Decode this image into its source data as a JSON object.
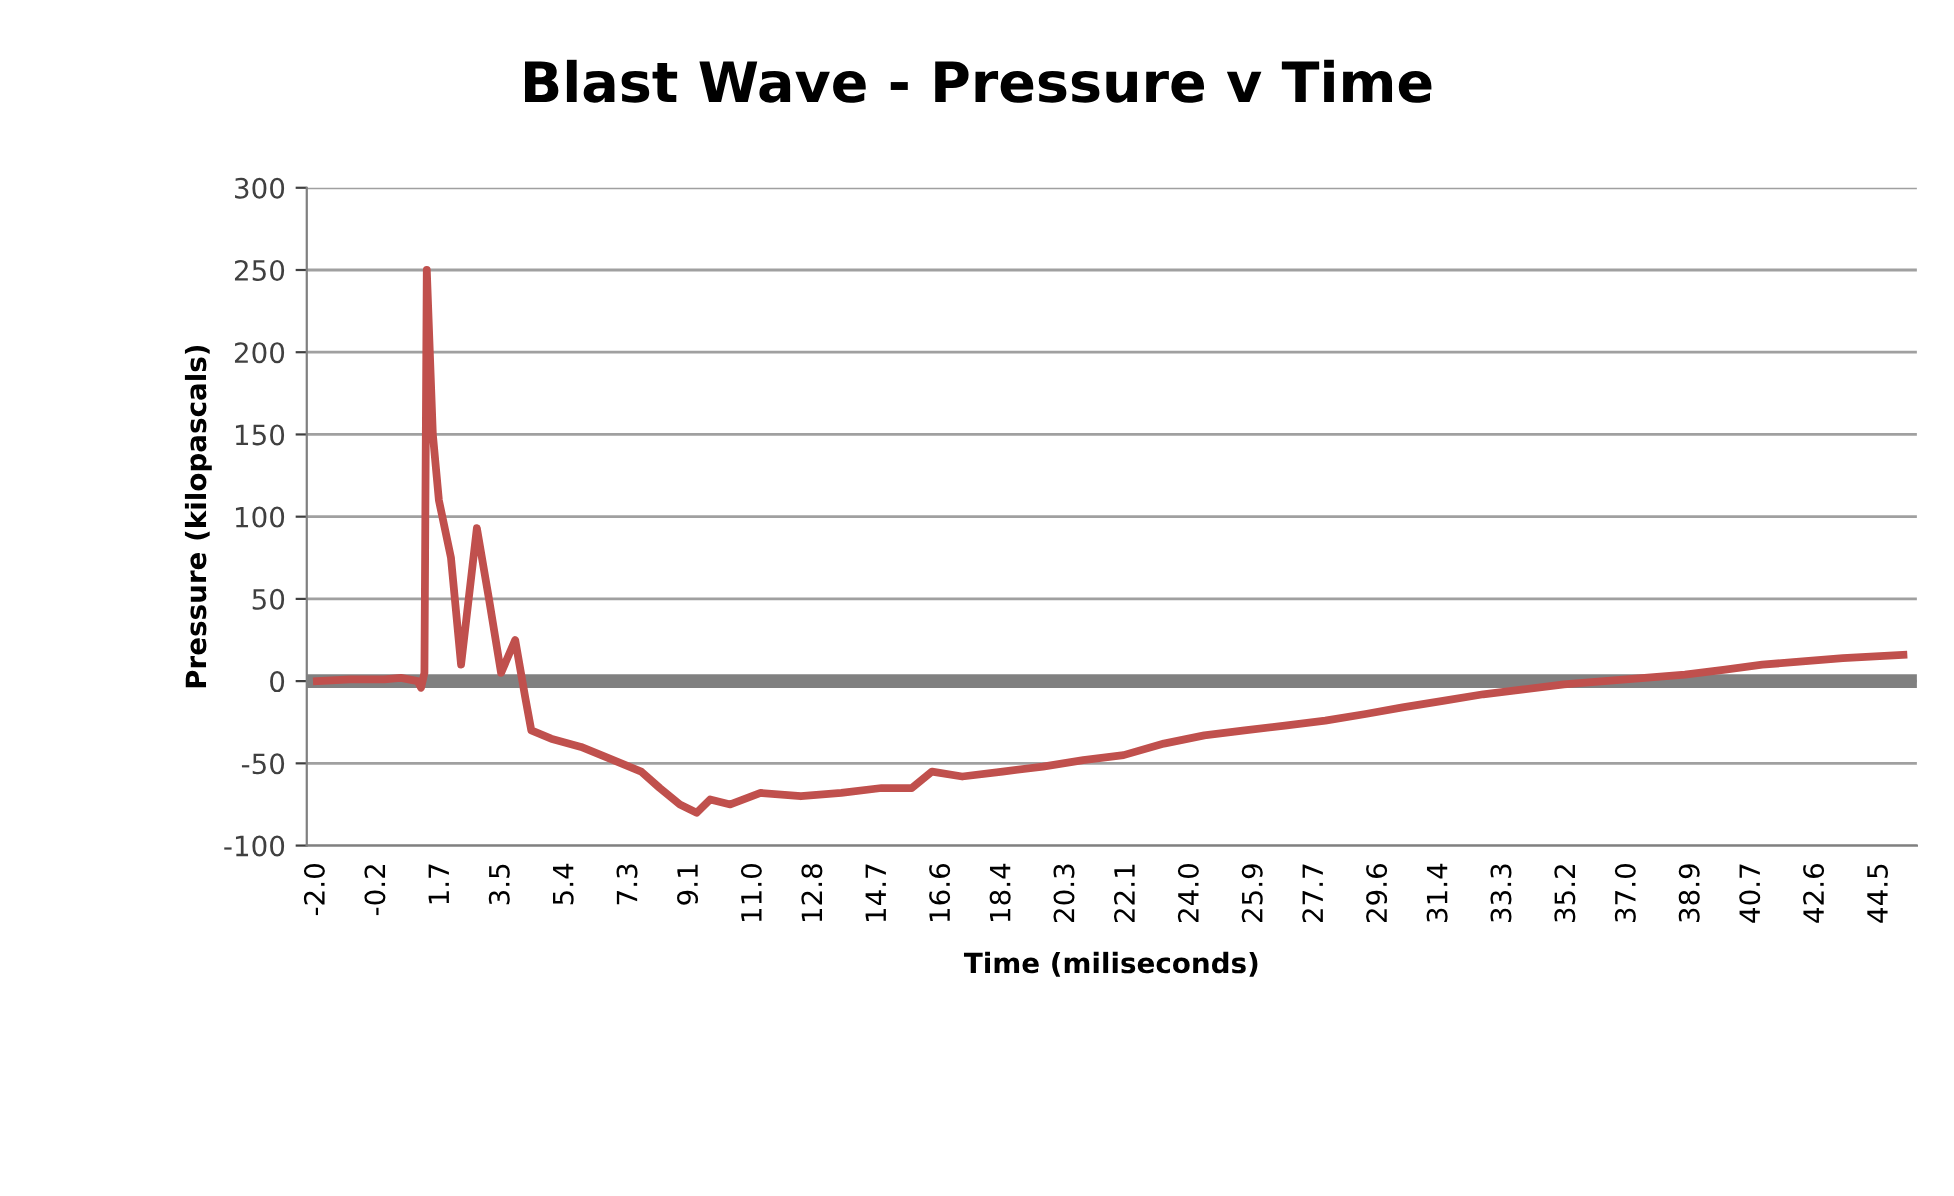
{
  "chart_data": {
    "type": "line",
    "title": "Blast Wave - Pressure v Time",
    "xlabel": "Time (miliseconds)",
    "ylabel": "Pressure (kilopascals)",
    "series": [
      {
        "color": "#c0504d",
        "x": [
          -2.0,
          -1.0,
          0.0,
          0.5,
          1.0,
          1.1,
          1.2,
          1.27,
          1.45,
          1.63,
          1.99,
          2.29,
          2.76,
          3.12,
          3.48,
          3.9,
          4.2,
          4.38,
          4.97,
          5.86,
          6.46,
          7.65,
          8.2,
          8.8,
          9.3,
          9.7,
          10.3,
          11.2,
          12.4,
          13.6,
          14.8,
          15.7,
          16.3,
          17.2,
          18.4,
          19.6,
          20.8,
          22.0,
          23.2,
          24.4,
          25.6,
          26.8,
          28.0,
          29.2,
          30.3,
          31.5,
          32.7,
          33.9,
          35.1,
          36.3,
          37.5,
          38.7,
          39.9,
          41.0,
          42.2,
          43.4,
          45.2
        ],
        "values": [
          0,
          1,
          1,
          2,
          0,
          -4,
          5,
          250,
          150,
          110,
          75,
          10,
          93,
          50,
          5,
          25,
          -10,
          -30,
          -35,
          -40,
          -45,
          -55,
          -65,
          -75,
          -80,
          -72,
          -75,
          -68,
          -70,
          -68,
          -65,
          -65,
          -55,
          -58,
          -55,
          -52,
          -48,
          -45,
          -38,
          -33,
          -30,
          -27,
          -24,
          -20,
          -16,
          -12,
          -8,
          -5,
          -2,
          0,
          2,
          4,
          7,
          10,
          12,
          14,
          16
        ]
      }
    ],
    "xlim": [
      -2.3,
      45.6
    ],
    "ylim": [
      -100,
      300
    ],
    "yticks": [
      -100,
      -50,
      0,
      50,
      100,
      150,
      200,
      250,
      300
    ],
    "xticks": [
      {
        "value": -2.0,
        "label": "-2.0"
      },
      {
        "value": -0.2,
        "label": "-0.2"
      },
      {
        "value": 1.7,
        "label": "1.7"
      },
      {
        "value": 3.5,
        "label": "3.5"
      },
      {
        "value": 5.4,
        "label": "5.4"
      },
      {
        "value": 7.3,
        "label": "7.3"
      },
      {
        "value": 9.1,
        "label": "9.1"
      },
      {
        "value": 11.0,
        "label": "11.0"
      },
      {
        "value": 12.8,
        "label": "12.8"
      },
      {
        "value": 14.7,
        "label": "14.7"
      },
      {
        "value": 16.6,
        "label": "16.6"
      },
      {
        "value": 18.4,
        "label": "18.4"
      },
      {
        "value": 20.3,
        "label": "20.3"
      },
      {
        "value": 22.1,
        "label": "22.1"
      },
      {
        "value": 24.0,
        "label": "24.0"
      },
      {
        "value": 25.9,
        "label": "25.9"
      },
      {
        "value": 27.7,
        "label": "27.7"
      },
      {
        "value": 29.6,
        "label": "29.6"
      },
      {
        "value": 31.4,
        "label": "31.4"
      },
      {
        "value": 33.3,
        "label": "33.3"
      },
      {
        "value": 35.2,
        "label": "35.2"
      },
      {
        "value": 37.0,
        "label": "37.0"
      },
      {
        "value": 38.9,
        "label": "38.9"
      },
      {
        "value": 40.7,
        "label": "40.7"
      },
      {
        "value": 42.6,
        "label": "42.6"
      },
      {
        "value": 44.5,
        "label": "44.5"
      }
    ],
    "ref_lines": [
      {
        "axis": "y",
        "value": 0,
        "color": "#808080"
      }
    ],
    "grid": "y",
    "marker": "none",
    "line_style": "solid"
  }
}
